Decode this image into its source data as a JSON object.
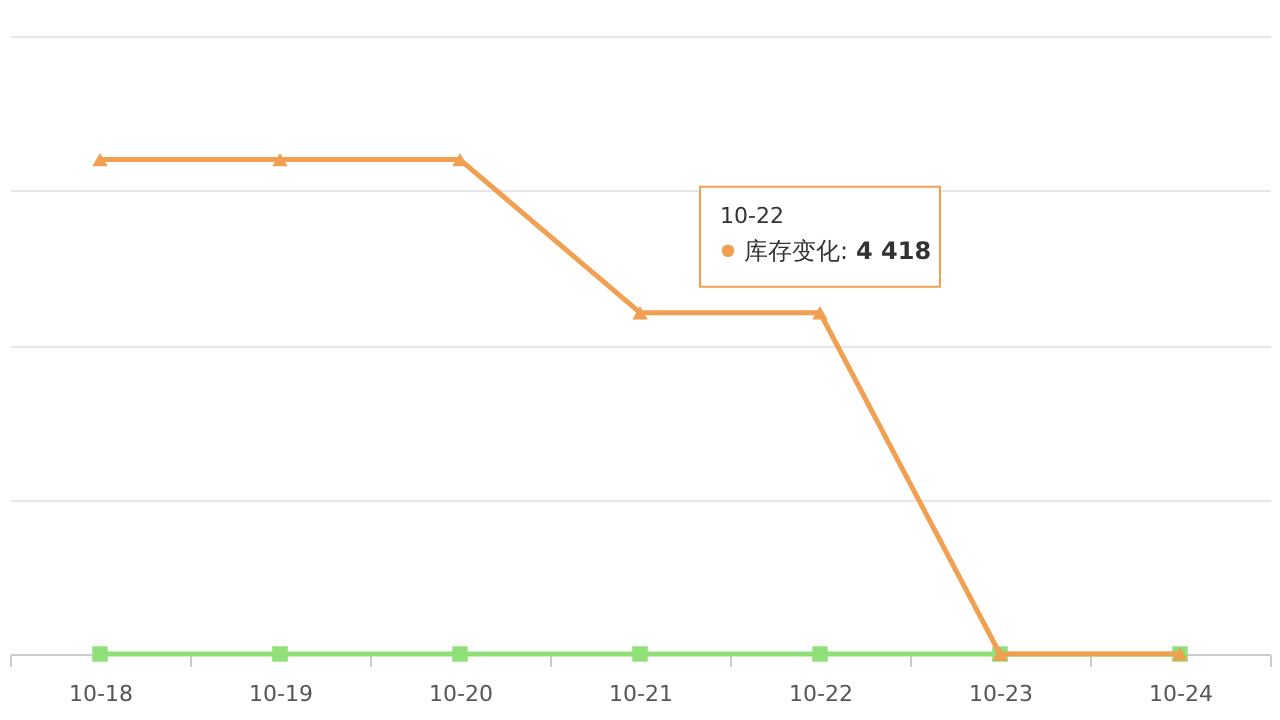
{
  "chart_data": {
    "type": "line",
    "grid": "y",
    "legend": "top right",
    "tick_labels": "x",
    "categories": [
      "10-18",
      "10-19",
      "10-20",
      "10-21",
      "10-22",
      "10-23",
      "10-24"
    ],
    "ylim": [
      0,
      8000
    ],
    "yticks": [
      {
        "value": 0,
        "label": null
      },
      {
        "value": 2000,
        "label": null
      },
      {
        "value": 4000,
        "label": null
      },
      {
        "value": 6000,
        "label": null
      },
      {
        "value": 8000,
        "label": null
      }
    ],
    "series": [
      {
        "color": "#90e07a",
        "marker": "square",
        "values": [
          0,
          0,
          0,
          0,
          0,
          0,
          0
        ]
      },
      {
        "name": "库存变化:",
        "color": "#f0a050",
        "marker": "triangle",
        "values": [
          6400,
          6400,
          6400,
          4418,
          4418,
          0,
          0
        ],
        "value_labels": [
          null,
          null,
          null,
          null,
          "4 418",
          null,
          null
        ]
      }
    ]
  }
}
